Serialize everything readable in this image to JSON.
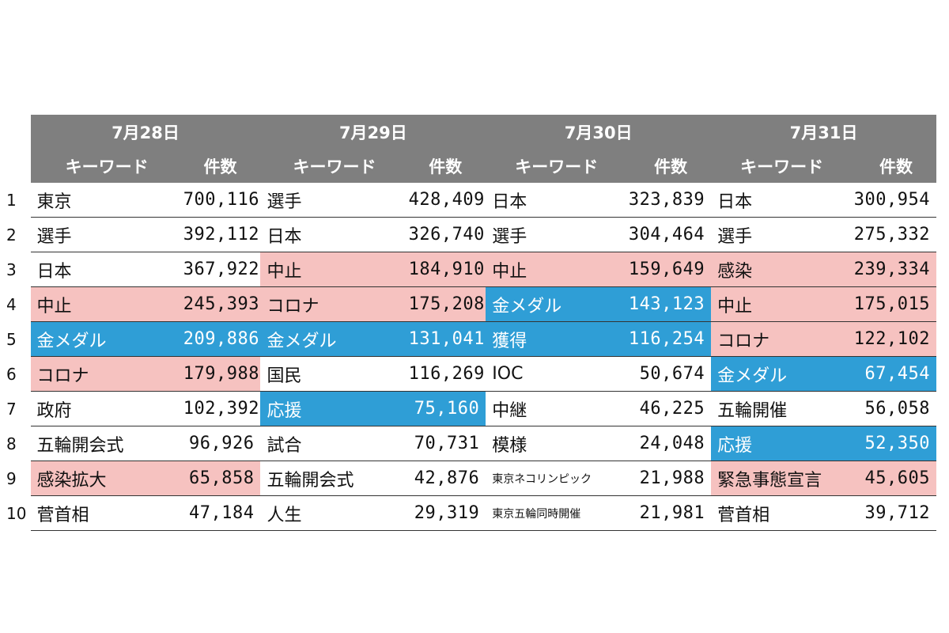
{
  "colors": {
    "header_bg": "#7f7f7f",
    "pink": "#f6c2c0",
    "blue": "#2f9ed6"
  },
  "days": [
    {
      "date": "7月28日",
      "kw_label": "キーワード",
      "count_label": "件数",
      "rows": [
        {
          "kw": "東京",
          "count": "700,116",
          "hl": ""
        },
        {
          "kw": "選手",
          "count": "392,112",
          "hl": ""
        },
        {
          "kw": "日本",
          "count": "367,922",
          "hl": ""
        },
        {
          "kw": "中止",
          "count": "245,393",
          "hl": "pink"
        },
        {
          "kw": "金メダル",
          "count": "209,886",
          "hl": "blue"
        },
        {
          "kw": "コロナ",
          "count": "179,988",
          "hl": "pink"
        },
        {
          "kw": "政府",
          "count": "102,392",
          "hl": ""
        },
        {
          "kw": "五輪開会式",
          "count": "96,926",
          "hl": ""
        },
        {
          "kw": "感染拡大",
          "count": "65,858",
          "hl": "pink"
        },
        {
          "kw": "菅首相",
          "count": "47,184",
          "hl": ""
        }
      ]
    },
    {
      "date": "7月29日",
      "kw_label": "キーワード",
      "count_label": "件数",
      "rows": [
        {
          "kw": "選手",
          "count": "428,409",
          "hl": ""
        },
        {
          "kw": "日本",
          "count": "326,740",
          "hl": ""
        },
        {
          "kw": "中止",
          "count": "184,910",
          "hl": "pink"
        },
        {
          "kw": "コロナ",
          "count": "175,208",
          "hl": "pink"
        },
        {
          "kw": "金メダル",
          "count": "131,041",
          "hl": "blue"
        },
        {
          "kw": "国民",
          "count": "116,269",
          "hl": ""
        },
        {
          "kw": "応援",
          "count": "75,160",
          "hl": "blue"
        },
        {
          "kw": "試合",
          "count": "70,731",
          "hl": ""
        },
        {
          "kw": "五輪開会式",
          "count": "42,876",
          "hl": ""
        },
        {
          "kw": "人生",
          "count": "29,319",
          "hl": ""
        }
      ]
    },
    {
      "date": "7月30日",
      "kw_label": "キーワード",
      "count_label": "件数",
      "rows": [
        {
          "kw": "日本",
          "count": "323,839",
          "hl": ""
        },
        {
          "kw": "選手",
          "count": "304,464",
          "hl": ""
        },
        {
          "kw": "中止",
          "count": "159,649",
          "hl": "pink"
        },
        {
          "kw": "金メダル",
          "count": "143,123",
          "hl": "blue"
        },
        {
          "kw": "獲得",
          "count": "116,254",
          "hl": "blue"
        },
        {
          "kw": "IOC",
          "count": "50,674",
          "hl": ""
        },
        {
          "kw": "中継",
          "count": "46,225",
          "hl": ""
        },
        {
          "kw": "模様",
          "count": "24,048",
          "hl": ""
        },
        {
          "kw": "東京ネコリンピック",
          "count": "21,988",
          "hl": "",
          "small": true
        },
        {
          "kw": "東京五輪同時開催",
          "count": "21,981",
          "hl": "",
          "small": true
        }
      ]
    },
    {
      "date": "7月31日",
      "kw_label": "キーワード",
      "count_label": "件数",
      "rows": [
        {
          "kw": "日本",
          "count": "300,954",
          "hl": ""
        },
        {
          "kw": "選手",
          "count": "275,332",
          "hl": ""
        },
        {
          "kw": "感染",
          "count": "239,334",
          "hl": "pink"
        },
        {
          "kw": "中止",
          "count": "175,015",
          "hl": "pink"
        },
        {
          "kw": "コロナ",
          "count": "122,102",
          "hl": "pink"
        },
        {
          "kw": "金メダル",
          "count": "67,454",
          "hl": "blue"
        },
        {
          "kw": "五輪開催",
          "count": "56,058",
          "hl": ""
        },
        {
          "kw": "応援",
          "count": "52,350",
          "hl": "blue"
        },
        {
          "kw": "緊急事態宣言",
          "count": "45,605",
          "hl": "pink"
        },
        {
          "kw": "菅首相",
          "count": "39,712",
          "hl": ""
        }
      ]
    }
  ],
  "ranks": [
    "1",
    "2",
    "3",
    "4",
    "5",
    "6",
    "7",
    "8",
    "9",
    "10"
  ]
}
